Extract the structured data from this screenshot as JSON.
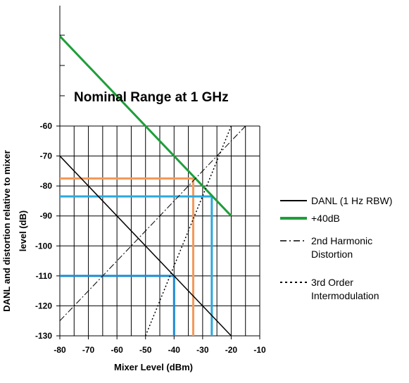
{
  "chart_data": {
    "type": "line",
    "title": "Nominal Range at 1 GHz",
    "xlabel": "Mixer Level (dBm)",
    "ylabel_lines": [
      "DANL and distortion relative to mixer",
      "level (dB)"
    ],
    "xlim": [
      -80,
      -10
    ],
    "ylim": [
      -130,
      -60
    ],
    "x_ticks": [
      -80,
      -70,
      -60,
      -50,
      -40,
      -30,
      -20,
      -10
    ],
    "y_ticks": [
      -60,
      -70,
      -80,
      -90,
      -100,
      -110,
      -120,
      -130
    ],
    "x_tick_labels": [
      "-80",
      "-70",
      "-60",
      "-50",
      "-40",
      "-30",
      "-20",
      "-10"
    ],
    "y_tick_labels": [
      "-60",
      "-70",
      "-80",
      "-90",
      "-100",
      "-110",
      "-120",
      "-130"
    ],
    "x_grid": [
      -80,
      -75,
      -70,
      -65,
      -60,
      -55,
      -50,
      -45,
      -40,
      -35,
      -30,
      -25,
      -20,
      -15,
      -10
    ],
    "y_grid": [
      -60,
      -70,
      -80,
      -90,
      -100,
      -110,
      -120,
      -130
    ],
    "grid": true,
    "legend_placement": "right",
    "series": [
      {
        "name": "DANL (1 Hz RBW)",
        "color": "#000000",
        "style": "solid",
        "points": [
          [
            -80,
            -70
          ],
          [
            -20,
            -130
          ]
        ]
      },
      {
        "name": "+40dB",
        "color": "#1e9e3a",
        "style": "solid",
        "points": [
          [
            -80,
            -30
          ],
          [
            -20,
            -90
          ]
        ]
      },
      {
        "name": "2nd Harmonic Distortion",
        "color": "#000000",
        "style": "dashdot",
        "points": [
          [
            -80,
            -125
          ],
          [
            -15,
            -60
          ]
        ]
      },
      {
        "name": "3rd Order Intermodulation",
        "color": "#000000",
        "style": "dotted",
        "points": [
          [
            -50,
            -130
          ],
          [
            -20,
            -60
          ]
        ]
      }
    ],
    "legend_entries": [
      {
        "series": 0,
        "lines": [
          "DANL (1 Hz RBW)"
        ]
      },
      {
        "series": 1,
        "lines": [
          "+40dB"
        ]
      },
      {
        "series": 2,
        "lines": [
          "2nd Harmonic",
          "Distortion"
        ]
      },
      {
        "series": 3,
        "lines": [
          "3rd Order",
          "Intermodulation"
        ]
      }
    ],
    "annotations": [
      {
        "name": "orange-marker",
        "color": "#f39a5a",
        "points": [
          [
            -80,
            -77.5
          ],
          [
            -33.3,
            -77.5
          ],
          [
            -33.3,
            -130
          ]
        ]
      },
      {
        "name": "blue-marker-upper",
        "color": "#29a8e0",
        "points": [
          [
            -80,
            -83.5
          ],
          [
            -26.8,
            -83.5
          ],
          [
            -26.8,
            -130
          ]
        ]
      },
      {
        "name": "blue-marker-lower",
        "color": "#1e8ad0",
        "points": [
          [
            -80,
            -110
          ],
          [
            -40,
            -110
          ],
          [
            -40,
            -130
          ]
        ]
      }
    ]
  }
}
